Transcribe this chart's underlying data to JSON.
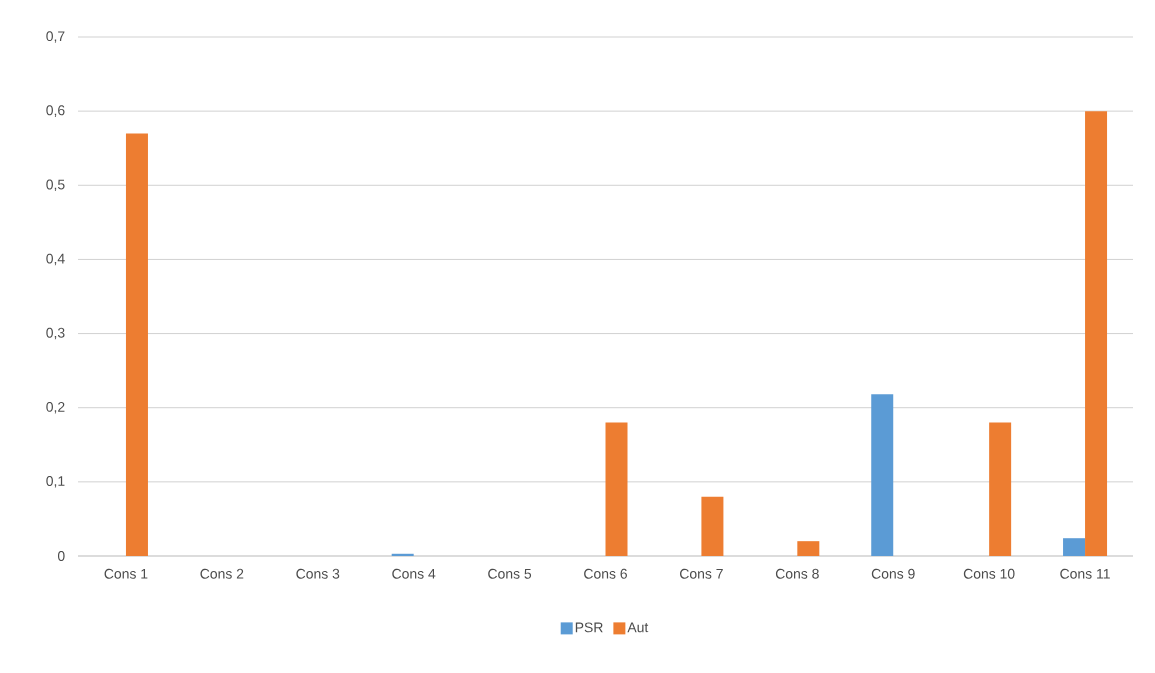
{
  "chart_data": {
    "type": "bar",
    "categories": [
      "Cons 1",
      "Cons 2",
      "Cons 3",
      "Cons 4",
      "Cons 5",
      "Cons 6",
      "Cons 7",
      "Cons 8",
      "Cons 9",
      "Cons 10",
      "Cons 11"
    ],
    "series": [
      {
        "name": "PSR",
        "color": "#5b9bd5",
        "values": [
          0,
          0,
          0,
          0.003,
          0,
          0,
          0,
          0,
          0.218,
          0,
          0.024
        ]
      },
      {
        "name": "Aut",
        "color": "#ed7d31",
        "values": [
          0.57,
          0,
          0,
          0,
          0,
          0.18,
          0.08,
          0.02,
          0,
          0.18,
          0.6
        ]
      }
    ],
    "ylim": [
      0,
      0.7
    ],
    "yticks": [
      0,
      {
        "value": 0.1,
        "label": "0,1"
      },
      {
        "value": 0.2,
        "label": "0,2"
      },
      {
        "value": 0.3,
        "label": "0,3"
      },
      {
        "value": 0.4,
        "label": "0,4"
      },
      {
        "value": 0.5,
        "label": "0,5"
      },
      {
        "value": 0.6,
        "label": "0,6"
      },
      {
        "value": 0.7,
        "label": "0,7"
      }
    ],
    "grid": "y",
    "legend": "bottom"
  }
}
